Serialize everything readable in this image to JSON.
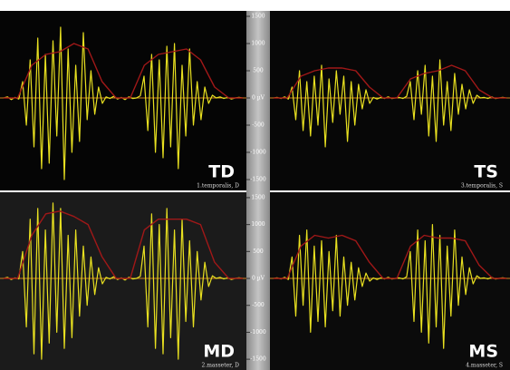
{
  "chart_data": [
    {
      "type": "line",
      "title": "TD",
      "subtitle": "1.temporalis, D",
      "ylim": [
        -1700,
        1600
      ],
      "yticks": [
        1500,
        1000,
        500,
        {
          "value": 0,
          "label": "0 µV"
        },
        -500,
        -1000,
        -1500
      ],
      "series": [
        {
          "color": "#e8e020",
          "values": [
            0,
            20,
            -30,
            10,
            -20,
            300,
            -500,
            700,
            -900,
            1100,
            -1300,
            800,
            -1200,
            1050,
            -700,
            1300,
            -1500,
            900,
            -1000,
            600,
            -800,
            1200,
            -400,
            500,
            -300,
            200,
            -100,
            20,
            -10,
            30,
            -20,
            10,
            -30,
            20,
            -10,
            0,
            40,
            400,
            -600,
            800,
            -1000,
            700,
            -1100,
            950,
            -900,
            1000,
            -1300,
            600,
            -700,
            900,
            -500,
            300,
            -400,
            200,
            -100,
            50,
            0,
            20,
            -10,
            10,
            -20,
            0,
            10,
            0
          ]
        },
        {
          "color": "#a01818",
          "values": [
            0,
            0,
            600,
            800,
            850,
            1000,
            900,
            300,
            0,
            0,
            600,
            800,
            850,
            900,
            700,
            200,
            0,
            0
          ]
        }
      ]
    },
    {
      "type": "line",
      "title": "TS",
      "subtitle": "3.temporalis, S",
      "ylim": [
        -1700,
        1600
      ],
      "series": [
        {
          "color": "#e8e020",
          "values": [
            0,
            10,
            -10,
            20,
            -20,
            200,
            -400,
            500,
            -600,
            300,
            -700,
            400,
            -500,
            600,
            -900,
            350,
            -450,
            500,
            -300,
            400,
            -800,
            300,
            -500,
            250,
            -200,
            150,
            -100,
            10,
            -20,
            10,
            -10,
            20,
            -10,
            0,
            10,
            -10,
            30,
            300,
            -400,
            500,
            -300,
            600,
            -700,
            400,
            -800,
            700,
            -500,
            300,
            -600,
            450,
            -300,
            250,
            -200,
            150,
            -100,
            50,
            0,
            10,
            -10,
            20,
            -10,
            0,
            10,
            0
          ]
        },
        {
          "color": "#a01818",
          "values": [
            0,
            0,
            400,
            500,
            550,
            550,
            500,
            200,
            0,
            0,
            350,
            450,
            500,
            600,
            500,
            150,
            0,
            0
          ]
        }
      ]
    },
    {
      "type": "line",
      "title": "MD",
      "subtitle": "2.masseter, D",
      "ylim": [
        -1700,
        1600
      ],
      "yticks": [
        1500,
        1000,
        500,
        {
          "value": 0,
          "label": "0 µV"
        },
        -500,
        -1000,
        -1500
      ],
      "series": [
        {
          "color": "#e8e020",
          "values": [
            0,
            20,
            -20,
            10,
            -10,
            500,
            -900,
            1100,
            -1400,
            1300,
            -1500,
            900,
            -1200,
            1400,
            -1000,
            1300,
            -1300,
            800,
            -1100,
            900,
            -700,
            600,
            -500,
            400,
            -300,
            200,
            -100,
            20,
            -10,
            30,
            -20,
            10,
            -30,
            20,
            -10,
            0,
            40,
            600,
            -900,
            1200,
            -1300,
            1000,
            -1400,
            1300,
            -1100,
            900,
            -1500,
            1100,
            -800,
            700,
            -900,
            500,
            -400,
            300,
            -150,
            50,
            0,
            20,
            -10,
            10,
            -20,
            0,
            10,
            0
          ]
        },
        {
          "color": "#a01818",
          "values": [
            0,
            0,
            800,
            1200,
            1250,
            1150,
            1000,
            400,
            0,
            0,
            900,
            1100,
            1100,
            1100,
            1000,
            300,
            0,
            0
          ]
        }
      ]
    },
    {
      "type": "line",
      "title": "MS",
      "subtitle": "4.masseter, S",
      "ylim": [
        -1700,
        1600
      ],
      "series": [
        {
          "color": "#e8e020",
          "values": [
            0,
            10,
            -10,
            20,
            -20,
            400,
            -700,
            800,
            -500,
            900,
            -1000,
            600,
            -800,
            700,
            -900,
            500,
            -600,
            800,
            -700,
            400,
            -500,
            300,
            -400,
            200,
            -150,
            100,
            -50,
            10,
            -20,
            10,
            -10,
            20,
            -10,
            0,
            10,
            -10,
            30,
            500,
            -800,
            900,
            -1000,
            700,
            -1200,
            1000,
            -900,
            800,
            -1300,
            600,
            -700,
            900,
            -500,
            400,
            -300,
            200,
            -100,
            50,
            0,
            10,
            -10,
            20,
            -10,
            0,
            10,
            0
          ]
        },
        {
          "color": "#a01818",
          "values": [
            0,
            0,
            600,
            800,
            750,
            800,
            700,
            300,
            0,
            0,
            600,
            800,
            750,
            750,
            700,
            250,
            0,
            0
          ]
        }
      ]
    }
  ]
}
